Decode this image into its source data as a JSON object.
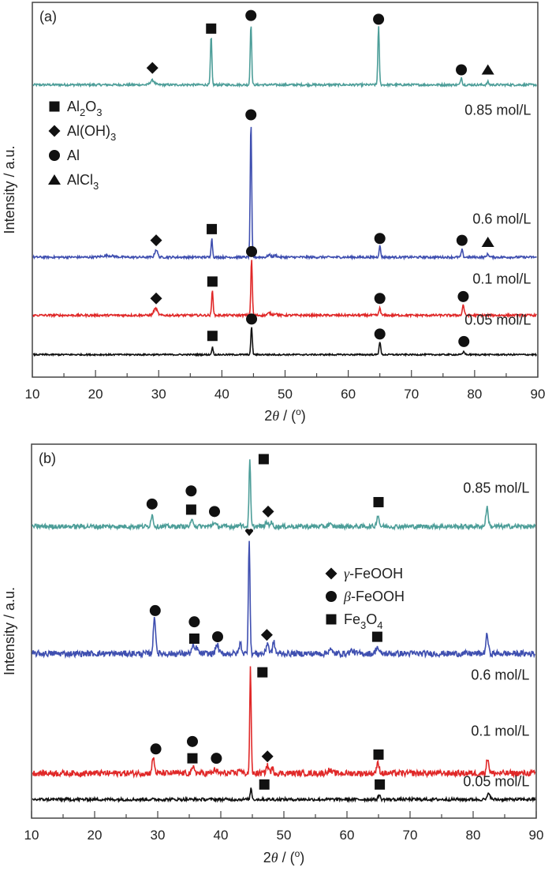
{
  "chart_data": [
    {
      "type": "line",
      "panel": "(a)",
      "title": "",
      "xlabel": "2θ / (°)",
      "ylabel": "Intensity / a.u.",
      "xlim": [
        10,
        90
      ],
      "xticks": [
        10,
        20,
        30,
        40,
        50,
        60,
        70,
        80,
        90
      ],
      "grid": false,
      "legend": {
        "placement": "upper-left",
        "entries": [
          {
            "marker": "square",
            "label": "Al",
            "sub1": "2",
            "mid": "O",
            "sub2": "3"
          },
          {
            "marker": "diamond",
            "label": "Al(OH)",
            "sub1": "3",
            "mid": "",
            "sub2": ""
          },
          {
            "marker": "circle",
            "label": "Al",
            "sub1": "",
            "mid": "",
            "sub2": ""
          },
          {
            "marker": "triangle",
            "label": "AlCl",
            "sub1": "3",
            "mid": "",
            "sub2": ""
          }
        ]
      },
      "series": [
        {
          "name": "0.85 mol/L",
          "color": "#4d9e99",
          "offset": 0.78,
          "noise": 0.003,
          "peaks": [
            [
              29.0,
              0.012,
              0.5
            ],
            [
              38.3,
              0.13,
              0.18
            ],
            [
              44.6,
              0.165,
              0.18
            ],
            [
              64.8,
              0.155,
              0.18
            ],
            [
              77.9,
              0.02,
              0.2
            ],
            [
              82.1,
              0.008,
              0.2
            ]
          ],
          "markers": [
            {
              "x": 29.0,
              "shape": "diamond",
              "h": 0.045
            },
            {
              "x": 38.3,
              "shape": "square",
              "h": 0.15
            },
            {
              "x": 44.6,
              "shape": "circle",
              "h": 0.185
            },
            {
              "x": 64.8,
              "shape": "circle",
              "h": 0.175
            },
            {
              "x": 77.9,
              "shape": "circle",
              "h": 0.04
            },
            {
              "x": 82.1,
              "shape": "triangle",
              "h": 0.04
            }
          ]
        },
        {
          "name": "0.6 mol/L",
          "color": "#3f4fb0",
          "offset": 0.32,
          "noise": 0.003,
          "peaks": [
            [
              29.6,
              0.02,
              0.35
            ],
            [
              38.4,
              0.05,
              0.18
            ],
            [
              44.6,
              0.36,
              0.18
            ],
            [
              47.5,
              0.006,
              0.4
            ],
            [
              48.5,
              0.005,
              0.4
            ],
            [
              65.0,
              0.03,
              0.2
            ],
            [
              78.0,
              0.02,
              0.2
            ],
            [
              82.1,
              0.008,
              0.3
            ],
            [
              22.0,
              0.004,
              1.5
            ]
          ],
          "markers": [
            {
              "x": 29.6,
              "shape": "diamond",
              "h": 0.045
            },
            {
              "x": 38.4,
              "shape": "square",
              "h": 0.075
            },
            {
              "x": 44.6,
              "shape": "circle",
              "h": 0.38
            },
            {
              "x": 65.0,
              "shape": "circle",
              "h": 0.05
            },
            {
              "x": 78.0,
              "shape": "circle",
              "h": 0.045
            },
            {
              "x": 82.1,
              "shape": "triangle",
              "h": 0.04
            }
          ]
        },
        {
          "name": "0.1 mol/L",
          "color": "#e02828",
          "offset": 0.165,
          "noise": 0.003,
          "peaks": [
            [
              29.5,
              0.018,
              0.45
            ],
            [
              38.5,
              0.068,
              0.18
            ],
            [
              44.7,
              0.15,
              0.18
            ],
            [
              47.5,
              0.006,
              0.4
            ],
            [
              48.5,
              0.005,
              0.4
            ],
            [
              65.0,
              0.02,
              0.2
            ],
            [
              78.2,
              0.028,
              0.22
            ]
          ],
          "markers": [
            {
              "x": 29.6,
              "shape": "diamond",
              "h": 0.045
            },
            {
              "x": 38.5,
              "shape": "square",
              "h": 0.09
            },
            {
              "x": 44.7,
              "shape": "circle",
              "h": 0.17
            },
            {
              "x": 65.0,
              "shape": "circle",
              "h": 0.045
            },
            {
              "x": 78.2,
              "shape": "circle",
              "h": 0.05
            }
          ]
        },
        {
          "name": "0.05 mol/L",
          "color": "#111111",
          "offset": 0.06,
          "noise": 0.002,
          "peaks": [
            [
              38.5,
              0.02,
              0.18
            ],
            [
              44.7,
              0.075,
              0.18
            ],
            [
              65.0,
              0.035,
              0.2
            ],
            [
              78.3,
              0.008,
              0.25
            ]
          ],
          "markers": [
            {
              "x": 38.5,
              "shape": "square",
              "h": 0.05
            },
            {
              "x": 44.7,
              "shape": "circle",
              "h": 0.095
            },
            {
              "x": 65.0,
              "shape": "circle",
              "h": 0.055
            },
            {
              "x": 78.3,
              "shape": "circle",
              "h": 0.035
            }
          ]
        }
      ],
      "series_labels": [
        {
          "text": "0.85 mol/L",
          "x": 87.8,
          "y": 0.7
        },
        {
          "text": "0.6 mol/L",
          "x": 87.8,
          "y": 0.41
        },
        {
          "text": "0.1 mol/L",
          "x": 87.8,
          "y": 0.25
        },
        {
          "text": "0.05 mol/L",
          "x": 87.8,
          "y": 0.14
        }
      ]
    },
    {
      "type": "line",
      "panel": "(b)",
      "title": "",
      "xlabel": "2θ / (°)",
      "ylabel": "Intensity / a.u.",
      "xlim": [
        10,
        90
      ],
      "xticks": [
        10,
        20,
        30,
        40,
        50,
        60,
        70,
        80,
        90
      ],
      "grid": false,
      "legend": {
        "placement": "right-middle",
        "entries": [
          {
            "marker": "diamond",
            "greek": "γ",
            "label": "-FeOOH",
            "sub1": "",
            "mid": "",
            "sub2": ""
          },
          {
            "marker": "circle",
            "greek": "β",
            "label": "-FeOOH",
            "sub1": "",
            "mid": "",
            "sub2": ""
          },
          {
            "marker": "square",
            "greek": "",
            "label": "Fe",
            "sub1": "3",
            "mid": "O",
            "sub2": "4"
          }
        ]
      },
      "series": [
        {
          "name": "0.85 mol/L",
          "color": "#4d9e99",
          "offset": 0.78,
          "noise": 0.006,
          "peaks": [
            [
              29.1,
              0.03,
              0.3
            ],
            [
              35.5,
              0.016,
              0.35
            ],
            [
              38.9,
              0.01,
              0.4
            ],
            [
              43.0,
              0.008,
              0.3
            ],
            [
              44.6,
              0.175,
              0.2
            ],
            [
              47.3,
              0.01,
              0.35
            ],
            [
              48.0,
              0.01,
              0.3
            ],
            [
              57.2,
              0.006,
              0.4
            ],
            [
              64.9,
              0.03,
              0.3
            ],
            [
              82.2,
              0.05,
              0.3
            ]
          ],
          "markers": [
            {
              "x": 29.1,
              "shape": "circle",
              "h": 0.06
            },
            {
              "x": 35.3,
              "shape": "square",
              "h": 0.045
            },
            {
              "x": 35.3,
              "shape": "circle",
              "h": 0.095
            },
            {
              "x": 39.0,
              "shape": "circle",
              "h": 0.04
            },
            {
              "x": 46.8,
              "shape": "square",
              "h": 0.18
            },
            {
              "x": 47.5,
              "shape": "diamond",
              "h": 0.04
            },
            {
              "x": 65.0,
              "shape": "square",
              "h": 0.065
            }
          ]
        },
        {
          "name": "0.6 mol/L",
          "color": "#3f4fb0",
          "offset": 0.44,
          "noise": 0.008,
          "peaks": [
            [
              29.5,
              0.095,
              0.3
            ],
            [
              35.6,
              0.018,
              0.35
            ],
            [
              36.2,
              0.015,
              0.3
            ],
            [
              39.4,
              0.025,
              0.35
            ],
            [
              43.1,
              0.028,
              0.3
            ],
            [
              44.5,
              0.31,
              0.2
            ],
            [
              47.4,
              0.03,
              0.3
            ],
            [
              48.4,
              0.03,
              0.3
            ],
            [
              57.3,
              0.012,
              0.4
            ],
            [
              60.8,
              0.008,
              0.5
            ],
            [
              64.8,
              0.018,
              0.35
            ],
            [
              82.2,
              0.05,
              0.3
            ]
          ],
          "markers": [
            {
              "x": 29.6,
              "shape": "circle",
              "h": 0.115
            },
            {
              "x": 35.8,
              "shape": "square",
              "h": 0.04
            },
            {
              "x": 35.8,
              "shape": "circle",
              "h": 0.085
            },
            {
              "x": 39.5,
              "shape": "circle",
              "h": 0.045
            },
            {
              "x": 44.5,
              "shape": "heart",
              "h": 0.325
            },
            {
              "x": 47.3,
              "shape": "diamond",
              "h": 0.05
            },
            {
              "x": 64.8,
              "shape": "square",
              "h": 0.045
            }
          ]
        },
        {
          "name": "0.1 mol/L",
          "color": "#e02828",
          "offset": 0.12,
          "noise": 0.008,
          "peaks": [
            [
              29.3,
              0.04,
              0.3
            ],
            [
              35.7,
              0.015,
              0.35
            ],
            [
              39.1,
              0.01,
              0.35
            ],
            [
              43.0,
              0.012,
              0.3
            ],
            [
              44.7,
              0.28,
              0.18
            ],
            [
              47.4,
              0.02,
              0.35
            ],
            [
              48.2,
              0.012,
              0.3
            ],
            [
              57.2,
              0.008,
              0.5
            ],
            [
              64.9,
              0.025,
              0.35
            ],
            [
              82.3,
              0.04,
              0.3
            ]
          ],
          "markers": [
            {
              "x": 29.7,
              "shape": "circle",
              "h": 0.065
            },
            {
              "x": 35.5,
              "shape": "square",
              "h": 0.04
            },
            {
              "x": 35.5,
              "shape": "circle",
              "h": 0.085
            },
            {
              "x": 39.3,
              "shape": "circle",
              "h": 0.04
            },
            {
              "x": 46.6,
              "shape": "square",
              "h": 0.27
            },
            {
              "x": 47.4,
              "shape": "diamond",
              "h": 0.045
            },
            {
              "x": 65.0,
              "shape": "square",
              "h": 0.05
            }
          ]
        },
        {
          "name": "0.05 mol/L",
          "color": "#111111",
          "offset": 0.05,
          "noise": 0.004,
          "peaks": [
            [
              44.8,
              0.03,
              0.2
            ],
            [
              65.1,
              0.012,
              0.25
            ],
            [
              82.5,
              0.018,
              0.3
            ]
          ],
          "markers": [
            {
              "x": 46.9,
              "shape": "square",
              "h": 0.04
            },
            {
              "x": 65.2,
              "shape": "square",
              "h": 0.04
            }
          ]
        }
      ],
      "series_labels": [
        {
          "text": "0.85 mol/L",
          "x": 87.8,
          "y": 0.87
        },
        {
          "text": "0.6 mol/L",
          "x": 87.8,
          "y": 0.37
        },
        {
          "text": "0.1 mol/L",
          "x": 87.8,
          "y": 0.22
        },
        {
          "text": "0.05 mol/L",
          "x": 87.8,
          "y": 0.085
        }
      ]
    }
  ]
}
